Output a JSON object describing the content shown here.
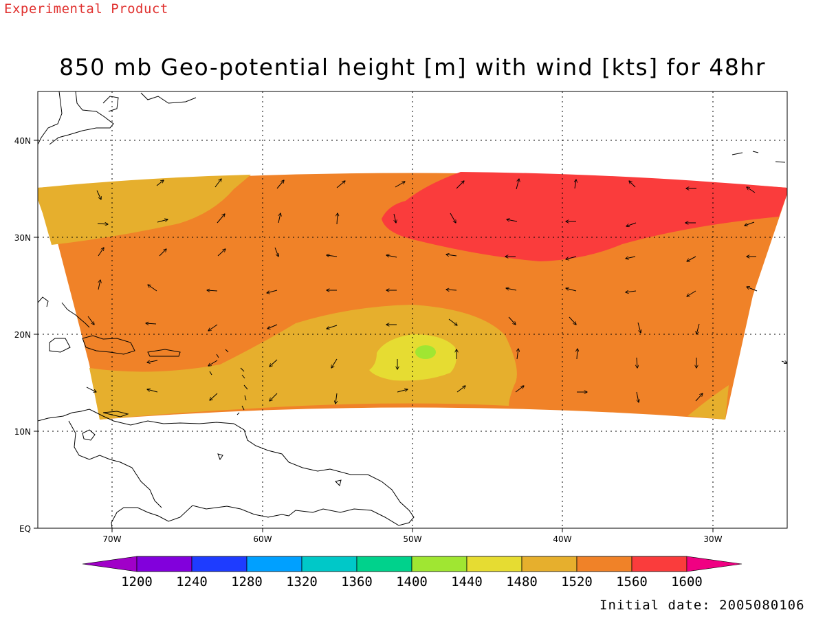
{
  "header": {
    "product_label": "Experimental Product",
    "title": "850 mb Geo-potential height [m] with wind [kts] for 48hr"
  },
  "map": {
    "x_ticks": [
      "70W",
      "60W",
      "50W",
      "40W",
      "30W"
    ],
    "y_ticks": [
      "EQ",
      "10N",
      "20N",
      "30N",
      "40N"
    ],
    "grid": "dotted"
  },
  "colorbar": {
    "labels": [
      "1200",
      "1240",
      "1280",
      "1320",
      "1360",
      "1400",
      "1440",
      "1480",
      "1520",
      "1560",
      "1600"
    ],
    "colors": [
      "#a000c8",
      "#8200dc",
      "#1e3cff",
      "#00a0ff",
      "#00c8c8",
      "#00d28c",
      "#a0e632",
      "#e6dc32",
      "#e6af2d",
      "#f08228",
      "#fa3c3c",
      "#f00082"
    ]
  },
  "footer": {
    "initial_date": "Initial date: 2005080106"
  },
  "colors": {
    "stamp": "#e0312f",
    "field_1480": "#e6dc32",
    "field_1520": "#e6af2d",
    "field_1560": "#f08228",
    "field_1600": "#fa3c3c",
    "field_1440": "#a0e632"
  }
}
